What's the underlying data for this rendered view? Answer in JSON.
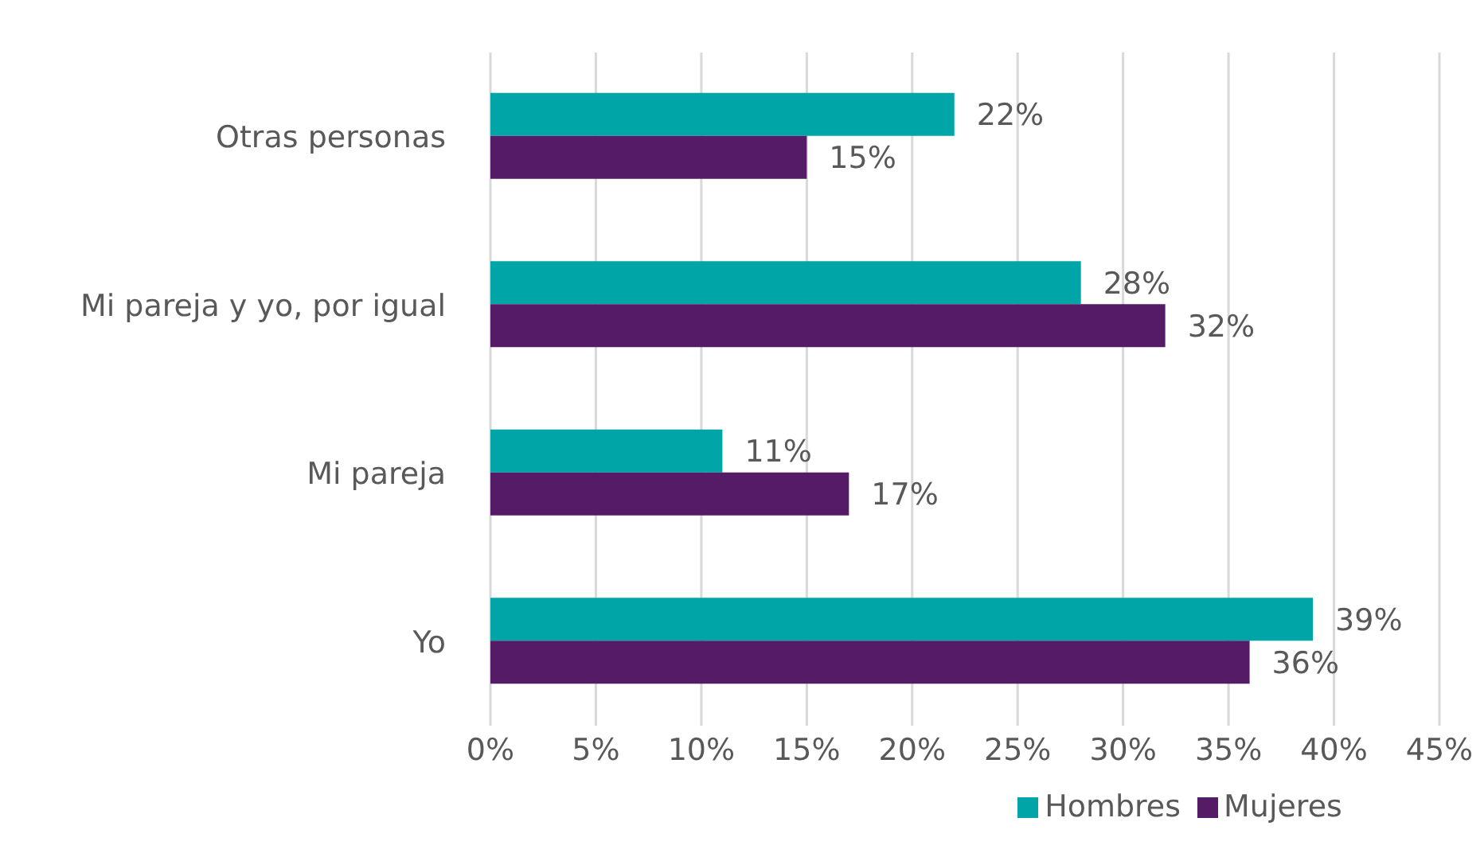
{
  "chart_data": {
    "type": "bar",
    "orientation": "horizontal",
    "categories": [
      "Otras personas",
      "Mi pareja y yo, por igual",
      "Mi pareja",
      "Yo"
    ],
    "series": [
      {
        "name": "Hombres",
        "color": "#00a5a8",
        "values": [
          22,
          28,
          11,
          39
        ],
        "value_labels": [
          "22%",
          "28%",
          "11%",
          "39%"
        ]
      },
      {
        "name": "Mujeres",
        "color": "#561b67",
        "values": [
          15,
          32,
          17,
          36
        ],
        "value_labels": [
          "15%",
          "32%",
          "17%",
          "36%"
        ]
      }
    ],
    "xlim": [
      0,
      45
    ],
    "xticks": [
      {
        "value": 0,
        "label": "0%"
      },
      {
        "value": 5,
        "label": "5%"
      },
      {
        "value": 10,
        "label": "10%"
      },
      {
        "value": 15,
        "label": "15%"
      },
      {
        "value": 20,
        "label": "20%"
      },
      {
        "value": 25,
        "label": "25%"
      },
      {
        "value": 30,
        "label": "30%"
      },
      {
        "value": 35,
        "label": "35%"
      },
      {
        "value": 40,
        "label": "40%"
      },
      {
        "value": 45,
        "label": "45%"
      }
    ],
    "grid": "x",
    "legend": "bottom"
  }
}
